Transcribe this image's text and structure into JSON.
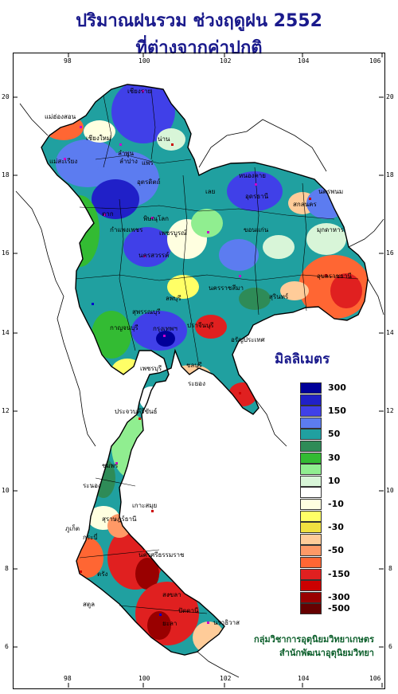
{
  "title": {
    "line1": "ปริมาณฝนรวม ช่วงฤดูฝน 2552",
    "line2": "ที่ต่างจากค่าปกติ"
  },
  "axes": {
    "lon_ticks": [
      "98",
      "100",
      "102",
      "104",
      "106"
    ],
    "lat_ticks": [
      "20",
      "18",
      "16",
      "14",
      "12",
      "10",
      "8",
      "6"
    ]
  },
  "legend": {
    "title": "มิลลิเมตร",
    "classes": [
      {
        "label": "300",
        "color": "#000099"
      },
      {
        "label": "",
        "color": "#2020c8"
      },
      {
        "label": "150",
        "color": "#4040e8"
      },
      {
        "label": "",
        "color": "#5c7cf0"
      },
      {
        "label": "50",
        "color": "#20a0a0"
      },
      {
        "label": "",
        "color": "#2e8b57"
      },
      {
        "label": "30",
        "color": "#33bb33"
      },
      {
        "label": "",
        "color": "#90ee90"
      },
      {
        "label": "10",
        "color": "#d8f5d8"
      },
      {
        "label": "",
        "color": "#ffffff"
      },
      {
        "label": "-10",
        "color": "#ffffe0"
      },
      {
        "label": "",
        "color": "#ffff66"
      },
      {
        "label": "-30",
        "color": "#f0e040"
      },
      {
        "label": "",
        "color": "#ffcc99"
      },
      {
        "label": "-50",
        "color": "#ff9966"
      },
      {
        "label": "",
        "color": "#ff6633"
      },
      {
        "label": "-150",
        "color": "#e02020"
      },
      {
        "label": "",
        "color": "#cc0000"
      },
      {
        "label": "-300",
        "color": "#990000"
      },
      {
        "label": "-500",
        "color": "#660000"
      }
    ]
  },
  "credit": {
    "line1": "กลุ่มวิชาการอุตุนิยมวิทยาเกษตร",
    "line2": "สำนักพัฒนาอุตุนิยมวิทยา"
  },
  "places": [
    "เชียงราย",
    "แม่ฮ่องสอน",
    "เชียงใหม่",
    "น่าน",
    "ลำพูน",
    "ลำปาง",
    "แพร่",
    "แม่สะเรียง",
    "อุตรดิตถ์",
    "หนองคาย",
    "เลย",
    "นครพนม",
    "อุดรธานี",
    "ตาก",
    "พิษณุโลก",
    "สกลนคร",
    "มุกดาหาร",
    "ขอนแก่น",
    "กำแพงเพชร",
    "เพชรบูรณ์",
    "นครสวรรค์",
    "อุบลราชธานี",
    "นครราชสีมา",
    "ลพบุรี",
    "สุพรรณบุรี",
    "สุรินทร์",
    "กาญจนบุรี",
    "กรุงเทพฯ",
    "ปราจีนบุรี",
    "อรัญประเทศ",
    "เพชรบุรี",
    "ชลบุรี",
    "ระยอง",
    "ประจวบคีรีขันธ์",
    "ชุมพร",
    "ระนอง",
    "เกาะสมุย",
    "สุราษฎร์ธานี",
    "ภูเก็ต",
    "กระบี่",
    "นครศรีธรรมราช",
    "ตรัง",
    "สงขลา",
    "ปัตตานี",
    "นราธิวาส",
    "ยะลา",
    "สตูล"
  ]
}
